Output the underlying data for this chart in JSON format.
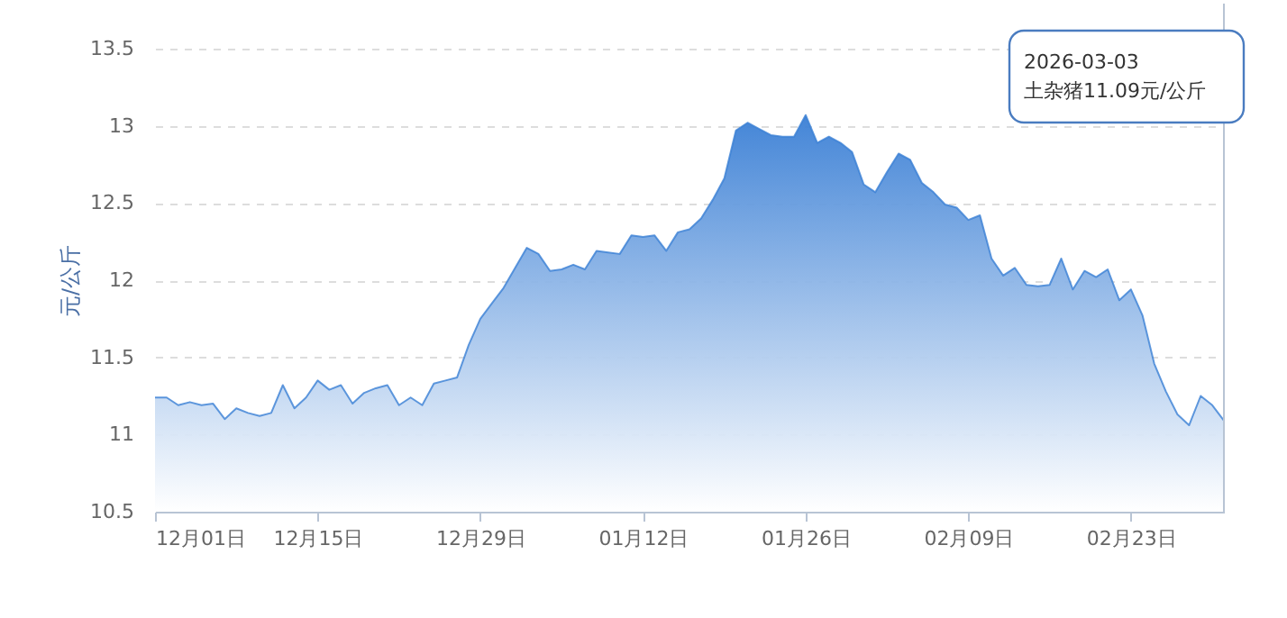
{
  "chart_data": {
    "type": "area",
    "ylabel": "元/公斤",
    "x": [
      "2025-12-01",
      "2025-12-02",
      "2025-12-03",
      "2025-12-04",
      "2025-12-05",
      "2025-12-06",
      "2025-12-07",
      "2025-12-08",
      "2025-12-09",
      "2025-12-10",
      "2025-12-11",
      "2025-12-12",
      "2025-12-13",
      "2025-12-14",
      "2025-12-15",
      "2025-12-16",
      "2025-12-17",
      "2025-12-18",
      "2025-12-19",
      "2025-12-20",
      "2025-12-21",
      "2025-12-22",
      "2025-12-23",
      "2025-12-24",
      "2025-12-25",
      "2025-12-26",
      "2025-12-27",
      "2025-12-28",
      "2025-12-29",
      "2025-12-30",
      "2025-12-31",
      "2026-01-01",
      "2026-01-02",
      "2026-01-03",
      "2026-01-04",
      "2026-01-05",
      "2026-01-06",
      "2026-01-07",
      "2026-01-08",
      "2026-01-09",
      "2026-01-10",
      "2026-01-11",
      "2026-01-12",
      "2026-01-13",
      "2026-01-14",
      "2026-01-15",
      "2026-01-16",
      "2026-01-17",
      "2026-01-18",
      "2026-01-19",
      "2026-01-20",
      "2026-01-21",
      "2026-01-22",
      "2026-01-23",
      "2026-01-24",
      "2026-01-25",
      "2026-01-26",
      "2026-01-27",
      "2026-01-28",
      "2026-01-29",
      "2026-01-30",
      "2026-01-31",
      "2026-02-01",
      "2026-02-02",
      "2026-02-03",
      "2026-02-04",
      "2026-02-05",
      "2026-02-06",
      "2026-02-07",
      "2026-02-08",
      "2026-02-09",
      "2026-02-10",
      "2026-02-11",
      "2026-02-12",
      "2026-02-13",
      "2026-02-14",
      "2026-02-15",
      "2026-02-16",
      "2026-02-17",
      "2026-02-18",
      "2026-02-19",
      "2026-02-20",
      "2026-02-21",
      "2026-02-22",
      "2026-02-23",
      "2026-02-24",
      "2026-02-25",
      "2026-02-26",
      "2026-02-27",
      "2026-02-28",
      "2026-03-01",
      "2026-03-02",
      "2026-03-03"
    ],
    "series": [
      {
        "color": "#3a7fd5",
        "values": [
          11.24,
          11.24,
          11.19,
          11.21,
          11.19,
          11.2,
          11.1,
          11.17,
          11.14,
          11.12,
          11.14,
          11.32,
          11.17,
          11.24,
          11.35,
          11.29,
          11.32,
          11.2,
          11.27,
          11.3,
          11.32,
          11.19,
          11.24,
          11.19,
          11.33,
          11.35,
          11.37,
          11.58,
          11.75,
          11.85,
          11.95,
          12.08,
          12.21,
          12.17,
          12.06,
          12.07,
          12.1,
          12.07,
          12.19,
          12.18,
          12.17,
          12.29,
          12.28,
          12.29,
          12.19,
          12.31,
          12.33,
          12.4,
          12.52,
          12.66,
          12.97,
          13.02,
          12.98,
          12.94,
          12.93,
          12.93,
          13.07,
          12.89,
          12.93,
          12.89,
          12.83,
          12.62,
          12.57,
          12.7,
          12.82,
          12.78,
          12.63,
          12.57,
          12.49,
          12.47,
          12.39,
          12.42,
          12.14,
          12.03,
          12.08,
          11.97,
          11.96,
          11.97,
          12.14,
          11.94,
          12.06,
          12.02,
          12.07,
          11.87,
          11.94,
          11.77,
          11.46,
          11.28,
          11.13,
          11.06,
          11.25,
          11.19,
          11.09
        ]
      }
    ],
    "xlim": [
      "2025-12-01",
      "2026-03-03"
    ],
    "xticks": [
      {
        "value": "2025-12-01",
        "label": "12月01日"
      },
      {
        "value": "2025-12-15",
        "label": "12月15日"
      },
      {
        "value": "2025-12-29",
        "label": "12月29日"
      },
      {
        "value": "2026-01-12",
        "label": "01月12日"
      },
      {
        "value": "2026-01-26",
        "label": "01月26日"
      },
      {
        "value": "2026-02-09",
        "label": "02月09日"
      },
      {
        "value": "2026-02-23",
        "label": "02月23日"
      }
    ],
    "ylim": [
      10.5,
      13.5
    ],
    "yticks": [
      10.5,
      11,
      11.5,
      12,
      12.5,
      13,
      13.5
    ],
    "grid": "y",
    "ref_lines": [
      {
        "axis": "x",
        "value": "2026-03-03",
        "color": "#b8c4d4"
      }
    ],
    "annotations": [
      "2026-03-03",
      "土杂猪11.09元/公斤"
    ]
  }
}
